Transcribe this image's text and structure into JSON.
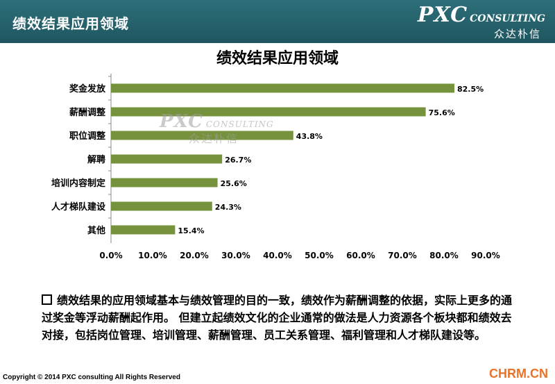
{
  "header": {
    "title": "绩效结果应用领域",
    "logo_main": "PXC",
    "logo_sub": "CONSULTING",
    "logo_cn": "众达朴信"
  },
  "watermark": {
    "main": "PXC",
    "sub": "CONSULTING",
    "cn": "众达朴信"
  },
  "colors": {
    "header": "#2d6f7a",
    "bar": "#76923c",
    "site": "#e8732a"
  },
  "chart_data": {
    "type": "bar",
    "orientation": "horizontal",
    "title": "绩效结果应用领域",
    "categories": [
      "奖金发放",
      "薪酬调整",
      "职位调整",
      "解聘",
      "培训内容制定",
      "人才梯队建设",
      "其他"
    ],
    "values": [
      82.5,
      75.6,
      43.8,
      26.7,
      25.6,
      24.3,
      15.4
    ],
    "value_labels": [
      "82.5%",
      "75.6%",
      "43.8%",
      "26.7%",
      "25.6%",
      "24.3%",
      "15.4%"
    ],
    "xlim": [
      0,
      90
    ],
    "xticks": [
      0,
      10,
      20,
      30,
      40,
      50,
      60,
      70,
      80,
      90
    ],
    "xtick_labels": [
      "0.0%",
      "10.0%",
      "20.0%",
      "30.0%",
      "40.0%",
      "50.0%",
      "60.0%",
      "70.0%",
      "80.0%",
      "90.0%"
    ],
    "grid": false,
    "legend": "none"
  },
  "description": "绩效结果的应用领域基本与绩效管理的目的一致，绩效作为薪酬调整的依据，实际上更多的通过奖金等浮动薪酬起作用。 但建立起绩效文化的企业通常的做法是人力资源各个板块都和绩效去对接，包括岗位管理、培训管理、薪酬管理、员工关系管理、福利管理和人才梯队建设等。",
  "footer": {
    "copyright": "Copyright © 2014  PXC consulting All Rights Reserved",
    "site": "CHRM.CN"
  }
}
